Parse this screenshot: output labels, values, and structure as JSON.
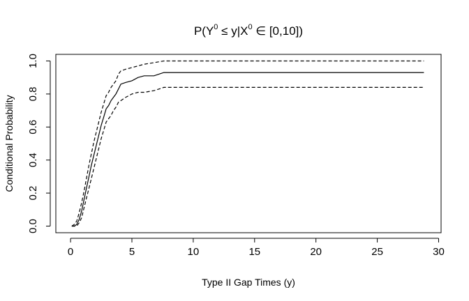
{
  "chart_data": {
    "type": "line",
    "title": {
      "prefix": "P(Y",
      "sup1": "0",
      "mid": " ≤ y|X",
      "sup2": "0",
      "suffix": " ∈ [0,10])"
    },
    "xlabel": "Type II Gap Times (y)",
    "ylabel": "Conditional Probability",
    "xlim": [
      -1.2,
      30.2
    ],
    "ylim": [
      -0.04,
      1.04
    ],
    "xticks": [
      0,
      5,
      10,
      15,
      20,
      25,
      30
    ],
    "xtick_labels": [
      "0",
      "5",
      "10",
      "15",
      "20",
      "25",
      "30"
    ],
    "yticks": [
      0.0,
      0.2,
      0.4,
      0.6,
      0.8,
      1.0
    ],
    "ytick_labels": [
      "0.0",
      "0.2",
      "0.4",
      "0.6",
      "0.8",
      "1.0"
    ],
    "grid": false,
    "legend": "none",
    "series": [
      {
        "style": "solid",
        "points": [
          [
            0.1,
            0
          ],
          [
            0.3,
            0
          ],
          [
            0.5,
            0.01
          ],
          [
            0.7,
            0.04
          ],
          [
            0.9,
            0.09
          ],
          [
            1.1,
            0.16
          ],
          [
            1.3,
            0.23
          ],
          [
            1.5,
            0.3
          ],
          [
            1.7,
            0.37
          ],
          [
            1.9,
            0.43
          ],
          [
            2.1,
            0.49
          ],
          [
            2.3,
            0.55
          ],
          [
            2.5,
            0.61
          ],
          [
            2.7,
            0.66
          ],
          [
            2.9,
            0.71
          ],
          [
            3.1,
            0.73
          ],
          [
            3.3,
            0.76
          ],
          [
            3.5,
            0.78
          ],
          [
            3.7,
            0.8
          ],
          [
            3.9,
            0.83
          ],
          [
            4.1,
            0.86
          ],
          [
            4.5,
            0.87
          ],
          [
            5.0,
            0.88
          ],
          [
            5.5,
            0.9
          ],
          [
            6.0,
            0.91
          ],
          [
            6.8,
            0.91
          ],
          [
            7.2,
            0.92
          ],
          [
            7.6,
            0.93
          ],
          [
            9,
            0.93
          ],
          [
            15,
            0.93
          ],
          [
            20,
            0.93
          ],
          [
            25,
            0.93
          ],
          [
            28.8,
            0.93
          ]
        ]
      },
      {
        "style": "dashed",
        "points": [
          [
            0.1,
            0
          ],
          [
            0.3,
            0.01
          ],
          [
            0.5,
            0.03
          ],
          [
            0.7,
            0.08
          ],
          [
            0.9,
            0.14
          ],
          [
            1.1,
            0.21
          ],
          [
            1.3,
            0.29
          ],
          [
            1.5,
            0.37
          ],
          [
            1.7,
            0.44
          ],
          [
            1.9,
            0.51
          ],
          [
            2.1,
            0.57
          ],
          [
            2.3,
            0.63
          ],
          [
            2.5,
            0.69
          ],
          [
            2.7,
            0.74
          ],
          [
            2.9,
            0.79
          ],
          [
            3.1,
            0.81
          ],
          [
            3.3,
            0.84
          ],
          [
            3.5,
            0.86
          ],
          [
            3.7,
            0.88
          ],
          [
            3.9,
            0.92
          ],
          [
            4.1,
            0.94
          ],
          [
            4.5,
            0.95
          ],
          [
            5.0,
            0.96
          ],
          [
            5.5,
            0.97
          ],
          [
            6.0,
            0.98
          ],
          [
            6.8,
            0.99
          ],
          [
            7.6,
            1.0
          ],
          [
            9,
            1.0
          ],
          [
            15,
            1.0
          ],
          [
            20,
            1.0
          ],
          [
            25,
            1.0
          ],
          [
            28.8,
            1.0
          ]
        ]
      },
      {
        "style": "dashed",
        "points": [
          [
            0.1,
            0
          ],
          [
            0.3,
            0
          ],
          [
            0.5,
            0
          ],
          [
            0.7,
            0.02
          ],
          [
            0.9,
            0.05
          ],
          [
            1.1,
            0.11
          ],
          [
            1.3,
            0.17
          ],
          [
            1.5,
            0.23
          ],
          [
            1.7,
            0.29
          ],
          [
            1.9,
            0.35
          ],
          [
            2.1,
            0.41
          ],
          [
            2.3,
            0.47
          ],
          [
            2.5,
            0.53
          ],
          [
            2.7,
            0.58
          ],
          [
            2.9,
            0.63
          ],
          [
            3.1,
            0.65
          ],
          [
            3.3,
            0.67
          ],
          [
            3.5,
            0.7
          ],
          [
            3.7,
            0.72
          ],
          [
            3.9,
            0.75
          ],
          [
            4.1,
            0.76
          ],
          [
            4.5,
            0.78
          ],
          [
            5.0,
            0.8
          ],
          [
            5.5,
            0.81
          ],
          [
            6.0,
            0.81
          ],
          [
            6.8,
            0.82
          ],
          [
            7.2,
            0.83
          ],
          [
            7.6,
            0.84
          ],
          [
            9,
            0.84
          ],
          [
            15,
            0.84
          ],
          [
            20,
            0.84
          ],
          [
            25,
            0.84
          ],
          [
            28.8,
            0.84
          ]
        ]
      }
    ]
  }
}
